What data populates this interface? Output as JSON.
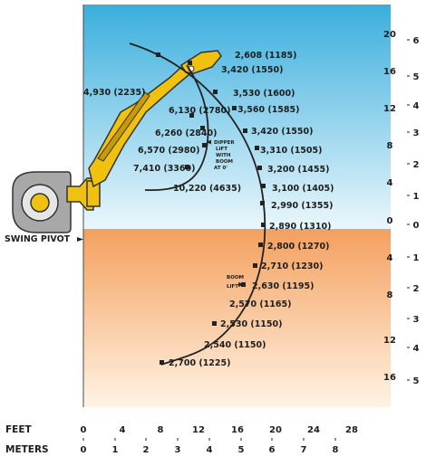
{
  "units": {
    "feet": "FEET",
    "meters": "METERS"
  },
  "right_feet_ticks": [
    "20",
    "16",
    "12",
    "8",
    "4",
    "0",
    "4",
    "8",
    "12",
    "16"
  ],
  "right_meter_ticks": [
    "6",
    "5",
    "4",
    "3",
    "2",
    "1",
    "0",
    "1",
    "2",
    "3",
    "4",
    "5"
  ],
  "bottom_feet_ticks": [
    "0",
    "4",
    "8",
    "12",
    "16",
    "20",
    "24",
    "28"
  ],
  "bottom_meter_ticks": [
    "0",
    "1",
    "2",
    "3",
    "4",
    "5",
    "6",
    "7",
    "8"
  ],
  "labels": {
    "swing_pivot": "SWING PIVOT",
    "dipper_lift": [
      "DIPPER",
      "LIFT",
      "WITH",
      "BOOM",
      "AT 0'"
    ],
    "boom_lift": [
      "BOOM",
      "LIFT"
    ]
  },
  "capacities": [
    "2,608 (1185)",
    "3,420 (1550)",
    "4,930 (2235)",
    "3,530 (1600)",
    "3,560 (1585)",
    "6,130 (2780)",
    "3,420 (1550)",
    "6,260 (2840)",
    "3,310 (1505)",
    "6,570 (2980)",
    "3,200 (1455)",
    "7,410 (3360)",
    "3,100 (1405)",
    "10,220 (4635)",
    "2,990 (1355)",
    "2,890 (1310)",
    "2,800 (1270)",
    "2,710 (1230)",
    "2,630 (1195)",
    "2,570 (1165)",
    "2,530 (1150)",
    "2,540 (1150)",
    "2,700 (1225)"
  ],
  "colors": {
    "sky_top": "#3aaedd",
    "sky_bottom": "#eaf7fc",
    "ground_top": "#f4a05e",
    "ground_bottom": "#fff3e4",
    "arm": "#f1c10f",
    "curve": "#222222"
  }
}
